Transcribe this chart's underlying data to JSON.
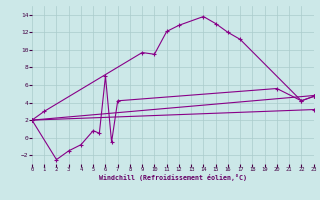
{
  "xlabel": "Windchill (Refroidissement éolien,°C)",
  "bg_color": "#cce8e8",
  "grid_color": "#aacccc",
  "line_color": "#880088",
  "xlim": [
    0,
    23
  ],
  "ylim": [
    -3,
    15
  ],
  "xticks": [
    0,
    1,
    2,
    3,
    4,
    5,
    6,
    7,
    8,
    9,
    10,
    11,
    12,
    13,
    14,
    15,
    16,
    17,
    18,
    19,
    20,
    21,
    22,
    23
  ],
  "yticks": [
    -2,
    0,
    2,
    4,
    6,
    8,
    10,
    12,
    14
  ],
  "series1_x": [
    0,
    1,
    9,
    10,
    11,
    12,
    14,
    15,
    16,
    17,
    22,
    23
  ],
  "series1_y": [
    2.0,
    3.0,
    9.7,
    9.5,
    12.1,
    12.8,
    13.8,
    13.0,
    12.0,
    11.2,
    4.2,
    4.7
  ],
  "series2_x": [
    0,
    2,
    3,
    4,
    5,
    5.5,
    6,
    6.5,
    7,
    20,
    22,
    23
  ],
  "series2_y": [
    2.0,
    -2.5,
    -1.5,
    -0.8,
    0.8,
    0.5,
    7.0,
    -0.5,
    4.2,
    5.6,
    4.2,
    4.7
  ],
  "series3_x": [
    0,
    23
  ],
  "series3_y": [
    2.0,
    4.8
  ],
  "series4_x": [
    0,
    23
  ],
  "series4_y": [
    2.0,
    3.2
  ]
}
